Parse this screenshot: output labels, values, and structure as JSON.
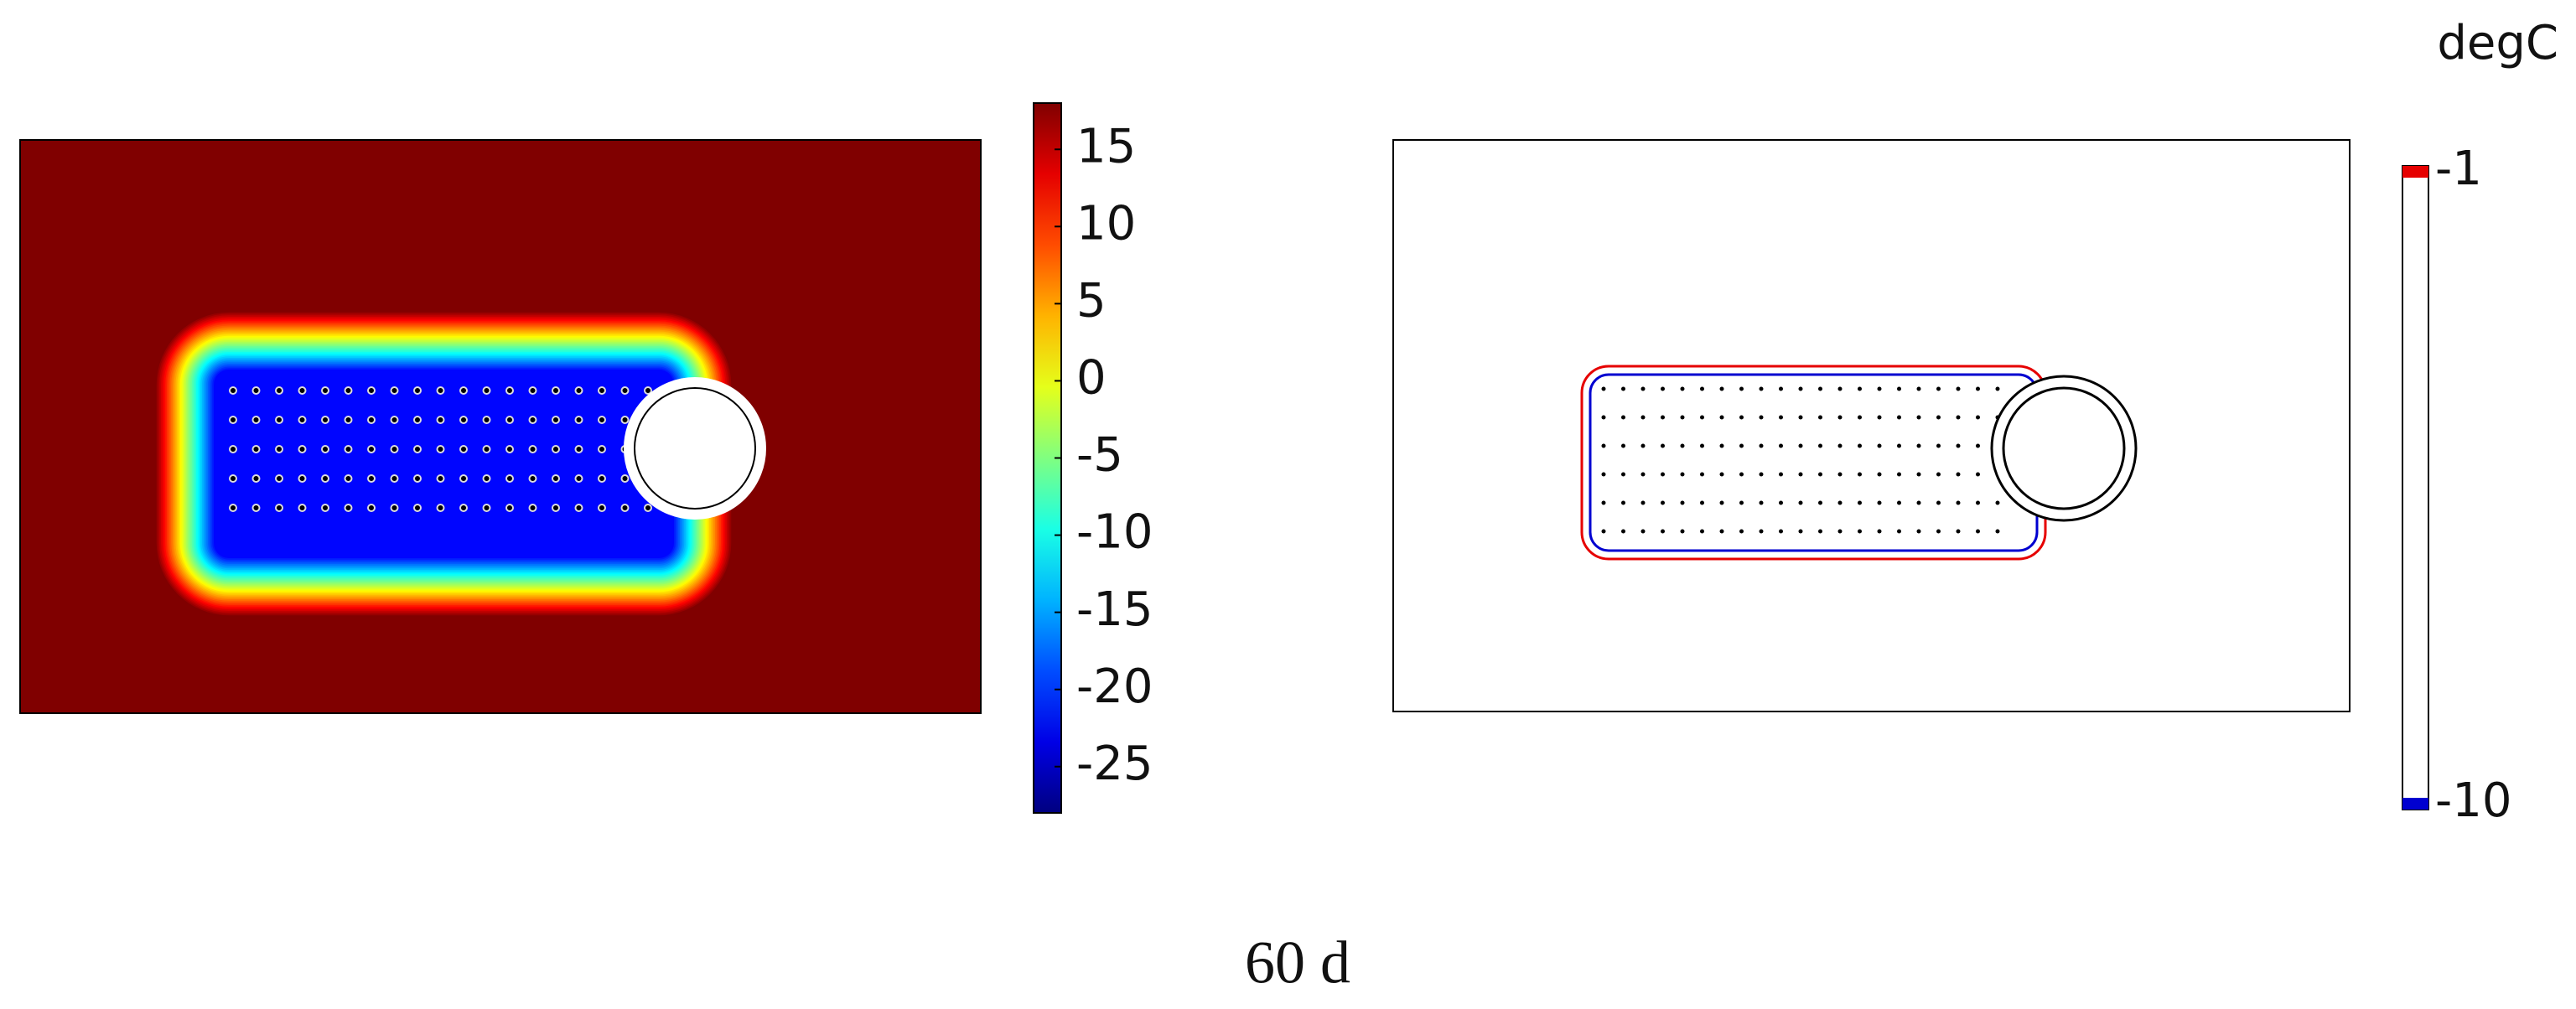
{
  "caption": "60 d",
  "chart_data": [
    {
      "type": "colormap",
      "clim": [
        -28,
        18
      ],
      "cticks": [
        15,
        10,
        5,
        0,
        -5,
        -10,
        -15,
        -20,
        -25
      ],
      "colormap": "jet"
    },
    {
      "type": "contour",
      "unit": "degC",
      "levels": [
        {
          "value": -1,
          "color": "#e60000"
        },
        {
          "value": -10,
          "color": "#0000d0"
        }
      ]
    }
  ]
}
